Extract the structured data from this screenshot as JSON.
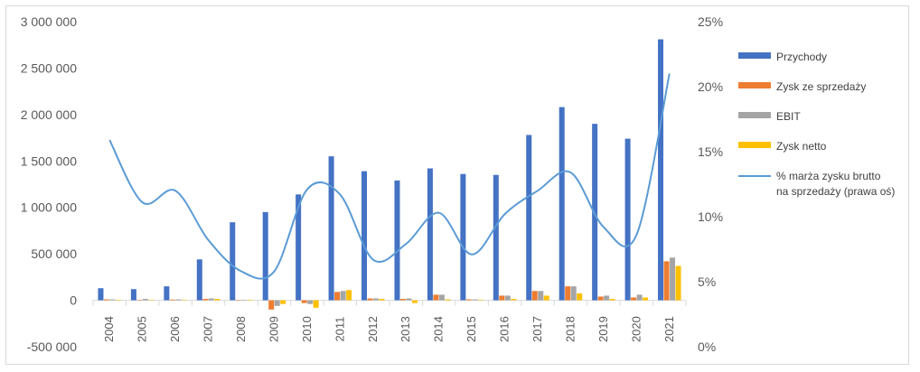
{
  "chart_data": {
    "type": "bar",
    "categories": [
      "2004",
      "2005",
      "2006",
      "2007",
      "2008",
      "2009",
      "2010",
      "2011",
      "2012",
      "2013",
      "2014",
      "2015",
      "2016",
      "2017",
      "2018",
      "2019",
      "2020",
      "2021"
    ],
    "y_left": {
      "ylim": [
        -500000,
        3000000
      ],
      "ticks": [
        -500000,
        0,
        500000,
        1000000,
        1500000,
        2000000,
        2500000,
        3000000
      ],
      "tick_labels": [
        "-500 000",
        "0",
        "500 000",
        "1 000 000",
        "1 500 000",
        "2 000 000",
        "2 500 000",
        "3 000 000"
      ]
    },
    "y_right": {
      "ylim": [
        0,
        25
      ],
      "ticks": [
        0,
        5,
        10,
        15,
        20,
        25
      ],
      "tick_labels": [
        "0%",
        "5%",
        "10%",
        "15%",
        "20%",
        "25%"
      ]
    },
    "series": [
      {
        "name": "Przychody",
        "type": "bar",
        "axis": "left",
        "color": "#4472c4",
        "values": [
          130000,
          120000,
          150000,
          440000,
          840000,
          950000,
          1140000,
          1550000,
          1390000,
          1290000,
          1420000,
          1360000,
          1350000,
          1780000,
          2080000,
          1900000,
          1740000,
          2810000
        ]
      },
      {
        "name": "Zysk ze sprzedaży",
        "type": "bar",
        "axis": "left",
        "color": "#ed7d31",
        "values": [
          10000,
          5000,
          8000,
          15000,
          5000,
          -100000,
          -30000,
          90000,
          20000,
          15000,
          60000,
          10000,
          50000,
          100000,
          150000,
          40000,
          30000,
          420000
        ]
      },
      {
        "name": "EBIT",
        "type": "bar",
        "axis": "left",
        "color": "#a5a5a5",
        "values": [
          10000,
          15000,
          10000,
          20000,
          5000,
          -60000,
          -40000,
          100000,
          20000,
          20000,
          60000,
          10000,
          50000,
          100000,
          150000,
          50000,
          60000,
          460000
        ]
      },
      {
        "name": "Zysk netto",
        "type": "bar",
        "axis": "left",
        "color": "#ffc000",
        "values": [
          5000,
          3000,
          5000,
          15000,
          3000,
          -40000,
          -80000,
          110000,
          15000,
          -30000,
          10000,
          5000,
          15000,
          50000,
          75000,
          15000,
          30000,
          370000
        ]
      },
      {
        "name": "% marża zysku brutto na sprzedaży (prawa oś)",
        "type": "line",
        "axis": "right",
        "color": "#5b9bd5",
        "values": [
          15.9,
          11.1,
          12.0,
          8.2,
          5.8,
          5.8,
          12.1,
          11.7,
          6.7,
          7.9,
          10.3,
          7.1,
          10.2,
          12.0,
          13.4,
          9.2,
          8.6,
          21.0
        ]
      }
    ],
    "legend": {
      "position": "right",
      "entries": [
        "Przychody",
        "Zysk ze sprzedaży",
        "EBIT",
        "Zysk netto",
        "% marża zysku brutto",
        "na sprzedaży (prawa oś)"
      ]
    },
    "grid": false
  }
}
